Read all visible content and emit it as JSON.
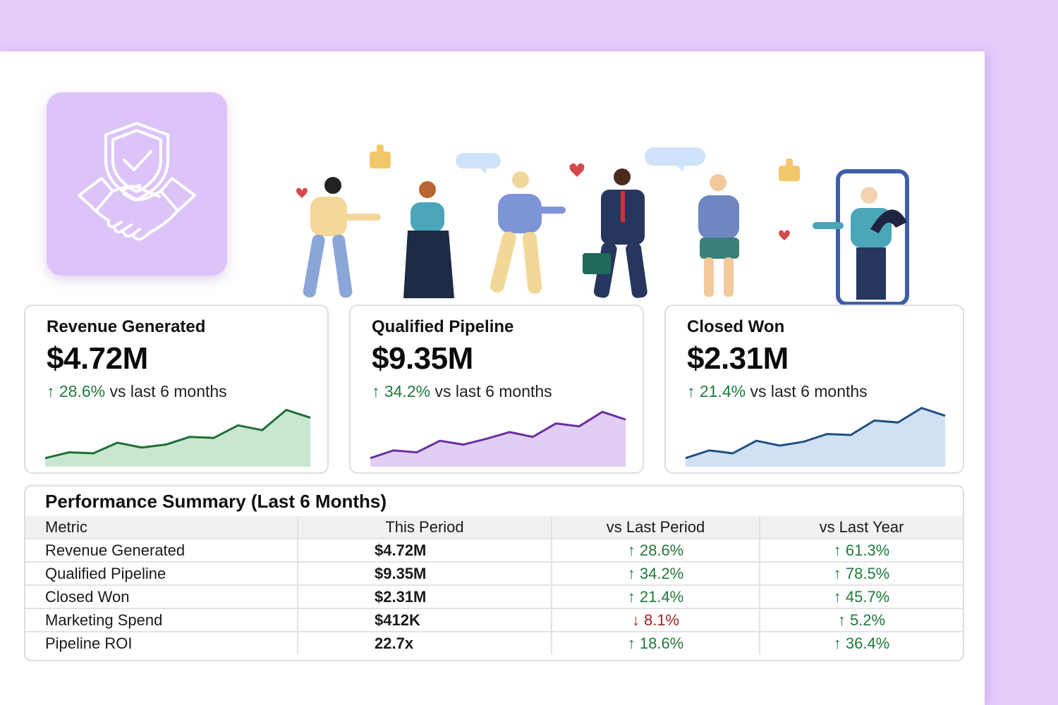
{
  "colors": {
    "backdrop": "#e4cdfb",
    "logo_tile": "#dcc4f8",
    "positive": "#1f7a3a",
    "negative": "#a42222",
    "revenue_line": "#1f6e35",
    "pipeline_line": "#6a2fa0",
    "closed_line": "#1f4f86"
  },
  "logo": {
    "icon": "shield-check-handshake-icon"
  },
  "cards": [
    {
      "title": "Revenue Generated",
      "value": "$4.72M",
      "arrow": "↑",
      "change": "28.6%",
      "suffix": " vs last 6 months",
      "color": "#1f6e35",
      "fill": "#bfe3c8",
      "trend": [
        6,
        12,
        11,
        22,
        17,
        20,
        28,
        27,
        40,
        35,
        56,
        48
      ]
    },
    {
      "title": "Qualified Pipeline",
      "value": "$9.35M",
      "arrow": "↑",
      "change": "34.2%",
      "suffix": " vs last 6 months",
      "color": "#6a2fa0",
      "fill": "#dcc6f2",
      "trend": [
        6,
        14,
        12,
        24,
        20,
        26,
        33,
        28,
        42,
        39,
        54,
        46
      ]
    },
    {
      "title": "Closed Won",
      "value": "$2.31M",
      "arrow": "↑",
      "change": "21.4%",
      "suffix": " vs last 6 months",
      "color": "#1f4f86",
      "fill": "#c9daf0",
      "trend": [
        6,
        14,
        11,
        24,
        19,
        23,
        31,
        30,
        45,
        43,
        58,
        50
      ]
    }
  ],
  "table": {
    "title": "Performance Summary (Last 6 Months)",
    "headers": [
      "Metric",
      "This Period",
      "vs Last Period",
      "vs Last Year"
    ],
    "rows": [
      {
        "metric": "Revenue Generated",
        "value": "$4.72M",
        "last_period": "↑ 28.6%",
        "last_period_dir": "up",
        "last_year": "↑ 61.3%",
        "last_year_dir": "up"
      },
      {
        "metric": "Qualified Pipeline",
        "value": "$9.35M",
        "last_period": "↑ 34.2%",
        "last_period_dir": "up",
        "last_year": "↑ 78.5%",
        "last_year_dir": "up"
      },
      {
        "metric": "Closed Won",
        "value": "$2.31M",
        "last_period": "↑ 21.4%",
        "last_period_dir": "up",
        "last_year": "↑ 45.7%",
        "last_year_dir": "up"
      },
      {
        "metric": "Marketing Spend",
        "value": "$412K",
        "last_period": "↓ 8.1%",
        "last_period_dir": "down",
        "last_year": "↑ 5.2%",
        "last_year_dir": "up"
      },
      {
        "metric": "Pipeline ROI",
        "value": "22.7x",
        "last_period": "↑ 18.6%",
        "last_period_dir": "up",
        "last_year": "↑ 36.4%",
        "last_year_dir": "up"
      }
    ]
  }
}
